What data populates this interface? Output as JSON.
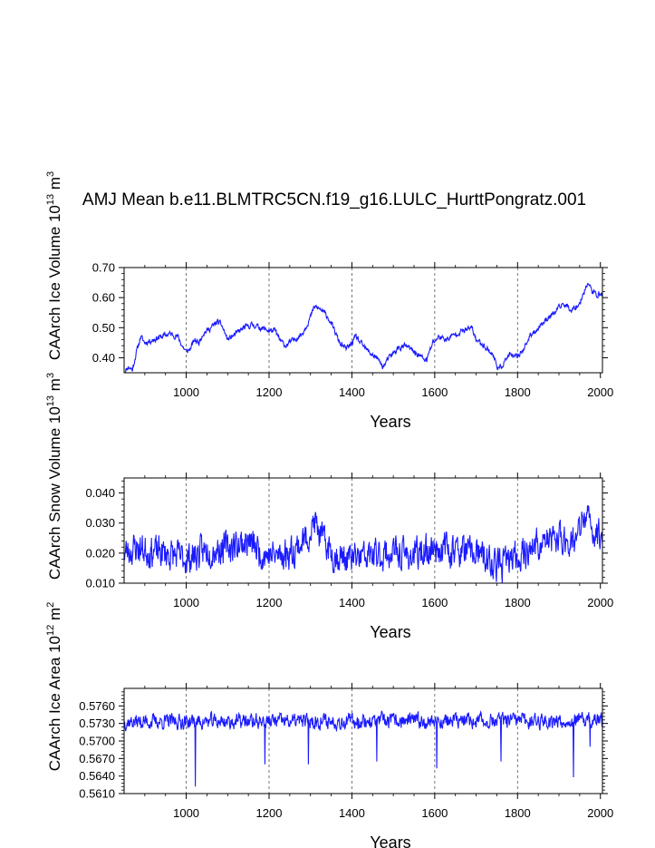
{
  "title": "AMJ Mean b.e11.BLMTRC5CN.f19_g16.LULC_HurttPongratz.001",
  "line_color": "#1a1aff",
  "chart_data": [
    {
      "type": "line",
      "ylabel": {
        "main": "CAArch Ice Volume 10",
        "exp": "13",
        "unit": " m",
        "unit_exp": "3"
      },
      "xlabel": "Years",
      "xlim": [
        850,
        2005
      ],
      "ylim": [
        0.35,
        0.7
      ],
      "xticks": [
        1000,
        1200,
        1400,
        1600,
        1800,
        2000
      ],
      "xtick_labels": [
        "1000",
        "1200",
        "1400",
        "1600",
        "1800",
        "2000"
      ],
      "yticks": [
        0.4,
        0.5,
        0.6,
        0.7
      ],
      "ytick_labels": [
        "0.40",
        "0.50",
        "0.60",
        "0.70"
      ],
      "grid_x": [
        1000,
        1200,
        1400,
        1600,
        1800
      ],
      "noise": 0.008,
      "seed": 11,
      "anchors": [
        [
          850,
          0.35
        ],
        [
          860,
          0.37
        ],
        [
          870,
          0.36
        ],
        [
          880,
          0.42
        ],
        [
          890,
          0.47
        ],
        [
          900,
          0.45
        ],
        [
          920,
          0.46
        ],
        [
          940,
          0.47
        ],
        [
          960,
          0.48
        ],
        [
          980,
          0.47
        ],
        [
          990,
          0.44
        ],
        [
          1000,
          0.42
        ],
        [
          1010,
          0.43
        ],
        [
          1020,
          0.46
        ],
        [
          1030,
          0.45
        ],
        [
          1040,
          0.48
        ],
        [
          1060,
          0.5
        ],
        [
          1075,
          0.52
        ],
        [
          1085,
          0.51
        ],
        [
          1100,
          0.46
        ],
        [
          1120,
          0.48
        ],
        [
          1140,
          0.5
        ],
        [
          1160,
          0.51
        ],
        [
          1180,
          0.5
        ],
        [
          1200,
          0.49
        ],
        [
          1215,
          0.49
        ],
        [
          1225,
          0.46
        ],
        [
          1240,
          0.44
        ],
        [
          1260,
          0.46
        ],
        [
          1280,
          0.48
        ],
        [
          1295,
          0.52
        ],
        [
          1310,
          0.57
        ],
        [
          1325,
          0.56
        ],
        [
          1340,
          0.54
        ],
        [
          1355,
          0.5
        ],
        [
          1370,
          0.45
        ],
        [
          1385,
          0.43
        ],
        [
          1395,
          0.44
        ],
        [
          1410,
          0.47
        ],
        [
          1420,
          0.45
        ],
        [
          1440,
          0.42
        ],
        [
          1460,
          0.4
        ],
        [
          1475,
          0.37
        ],
        [
          1490,
          0.4
        ],
        [
          1510,
          0.43
        ],
        [
          1530,
          0.44
        ],
        [
          1550,
          0.42
        ],
        [
          1570,
          0.4
        ],
        [
          1580,
          0.39
        ],
        [
          1595,
          0.45
        ],
        [
          1610,
          0.47
        ],
        [
          1630,
          0.46
        ],
        [
          1650,
          0.48
        ],
        [
          1670,
          0.49
        ],
        [
          1690,
          0.5
        ],
        [
          1700,
          0.46
        ],
        [
          1720,
          0.44
        ],
        [
          1740,
          0.41
        ],
        [
          1755,
          0.36
        ],
        [
          1765,
          0.38
        ],
        [
          1780,
          0.41
        ],
        [
          1795,
          0.4
        ],
        [
          1810,
          0.42
        ],
        [
          1830,
          0.47
        ],
        [
          1850,
          0.5
        ],
        [
          1870,
          0.53
        ],
        [
          1890,
          0.55
        ],
        [
          1910,
          0.58
        ],
        [
          1930,
          0.56
        ],
        [
          1950,
          0.58
        ],
        [
          1960,
          0.62
        ],
        [
          1970,
          0.65
        ],
        [
          1980,
          0.62
        ],
        [
          1990,
          0.61
        ],
        [
          2005,
          0.61
        ]
      ]
    },
    {
      "type": "line",
      "ylabel": {
        "main": "CAArch Snow Volume 10",
        "exp": "13",
        "unit": " m",
        "unit_exp": "3"
      },
      "xlabel": "Years",
      "xlim": [
        850,
        2005
      ],
      "ylim": [
        0.01,
        0.045
      ],
      "xticks": [
        1000,
        1200,
        1400,
        1600,
        1800,
        2000
      ],
      "xtick_labels": [
        "1000",
        "1200",
        "1400",
        "1600",
        "1800",
        "2000"
      ],
      "yticks": [
        0.01,
        0.02,
        0.03,
        0.04
      ],
      "ytick_labels": [
        "0.010",
        "0.020",
        "0.030",
        "0.040"
      ],
      "grid_x": [
        1000,
        1200,
        1400,
        1600,
        1800
      ],
      "noise": 0.0045,
      "seed": 23,
      "anchors": [
        [
          850,
          0.02
        ],
        [
          880,
          0.022
        ],
        [
          900,
          0.021
        ],
        [
          950,
          0.02
        ],
        [
          1000,
          0.018
        ],
        [
          1050,
          0.021
        ],
        [
          1100,
          0.022
        ],
        [
          1150,
          0.024
        ],
        [
          1180,
          0.02
        ],
        [
          1220,
          0.019
        ],
        [
          1260,
          0.021
        ],
        [
          1290,
          0.025
        ],
        [
          1310,
          0.03
        ],
        [
          1330,
          0.024
        ],
        [
          1360,
          0.019
        ],
        [
          1400,
          0.018
        ],
        [
          1450,
          0.019
        ],
        [
          1500,
          0.02
        ],
        [
          1550,
          0.019
        ],
        [
          1600,
          0.022
        ],
        [
          1650,
          0.021
        ],
        [
          1700,
          0.02
        ],
        [
          1740,
          0.016
        ],
        [
          1760,
          0.016
        ],
        [
          1800,
          0.019
        ],
        [
          1850,
          0.023
        ],
        [
          1900,
          0.025
        ],
        [
          1940,
          0.024
        ],
        [
          1965,
          0.033
        ],
        [
          1980,
          0.027
        ],
        [
          2005,
          0.026
        ]
      ]
    },
    {
      "type": "line",
      "ylabel": {
        "main": "CAArch Ice Area 10",
        "exp": "12",
        "unit": " m",
        "unit_exp": "2"
      },
      "xlabel": "Years",
      "xlim": [
        850,
        2005
      ],
      "ylim": [
        0.561,
        0.579
      ],
      "xticks": [
        1000,
        1200,
        1400,
        1600,
        1800,
        2000
      ],
      "xtick_labels": [
        "1000",
        "1200",
        "1400",
        "1600",
        "1800",
        "2000"
      ],
      "yticks": [
        0.561,
        0.564,
        0.567,
        0.57,
        0.573,
        0.576
      ],
      "ytick_labels": [
        "0.5610",
        "0.5640",
        "0.5670",
        "0.5700",
        "0.5730",
        "0.5760"
      ],
      "grid_x": [
        1000,
        1200,
        1400,
        1600,
        1800
      ],
      "noise": 0.0011,
      "seed": 37,
      "anchors": [
        [
          850,
          0.5733
        ],
        [
          2005,
          0.5735
        ]
      ],
      "dips": [
        [
          1022,
          0.5622
        ],
        [
          1190,
          0.566
        ],
        [
          1295,
          0.566
        ],
        [
          1460,
          0.5665
        ],
        [
          1605,
          0.5653
        ],
        [
          1760,
          0.5665
        ],
        [
          1935,
          0.5638
        ],
        [
          1975,
          0.569
        ]
      ]
    }
  ]
}
